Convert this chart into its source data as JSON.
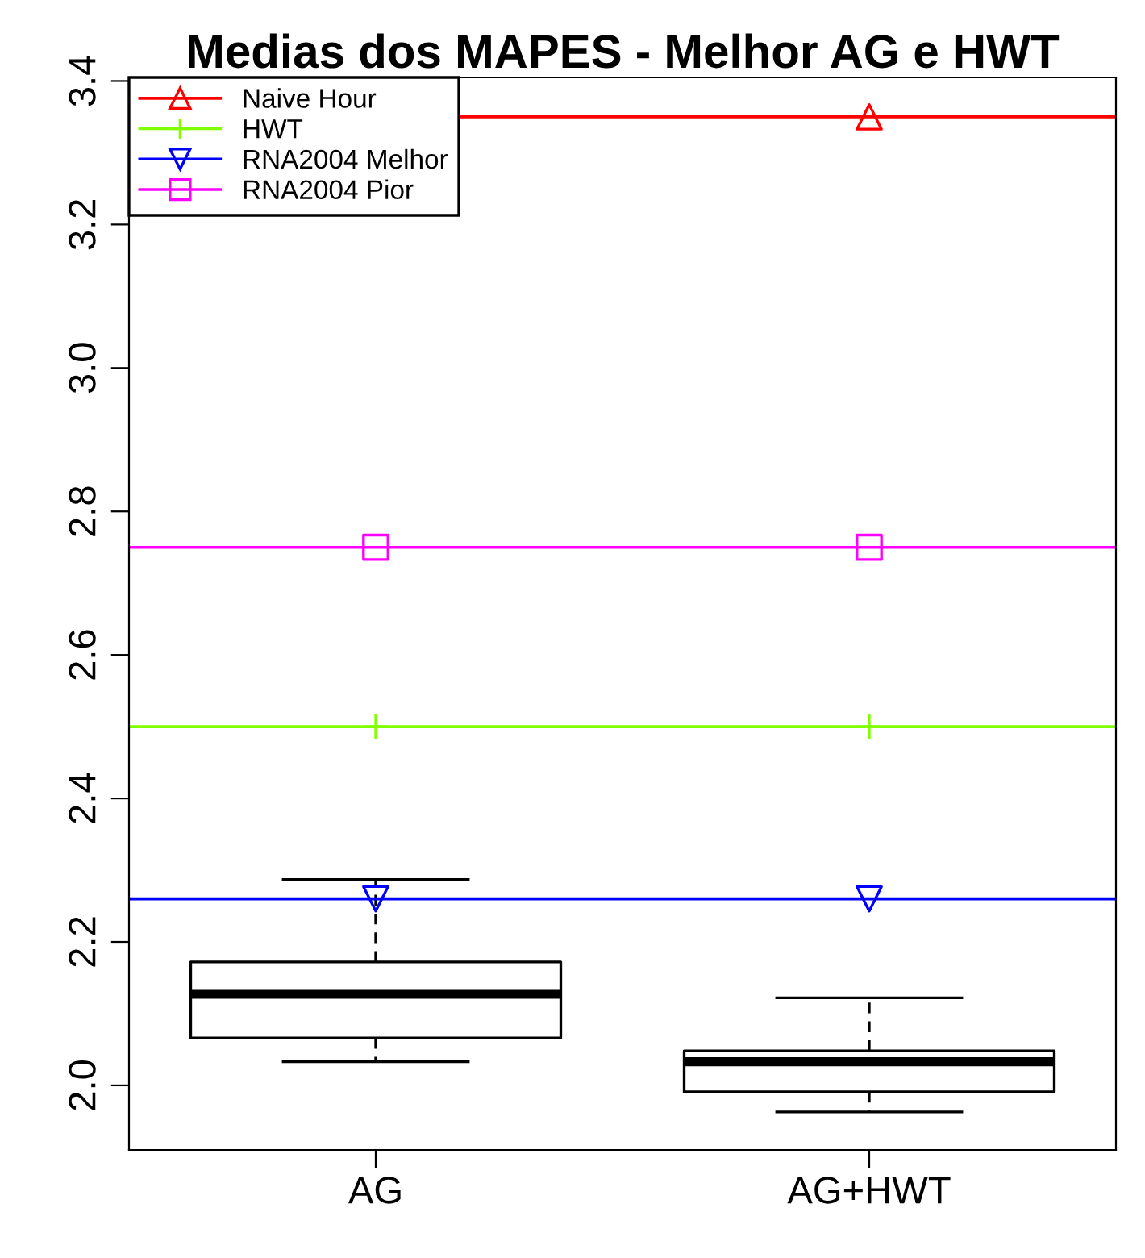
{
  "chart_data": {
    "type": "box",
    "title": "Medias dos MAPES - Melhor AG e HWT",
    "categories": [
      "AG",
      "AG+HWT"
    ],
    "boxes": [
      {
        "low": 2.033,
        "q1": 2.066,
        "median": 2.127,
        "q3": 2.172,
        "high": 2.287
      },
      {
        "low": 1.963,
        "q1": 1.991,
        "median": 2.033,
        "q3": 2.048,
        "high": 2.122
      }
    ],
    "series": [
      {
        "name": "Naive Hour",
        "type": "scatter",
        "color": "#ff0000",
        "marker": "triangle",
        "x": [
          "AG",
          "AG+HWT"
        ],
        "values": [
          null,
          3.35
        ]
      },
      {
        "name": "HWT",
        "type": "scatter",
        "color": "#80ff00",
        "marker": "cross",
        "x": [
          "AG",
          "AG+HWT"
        ],
        "values": [
          2.5,
          2.5
        ]
      },
      {
        "name": "RNA2004 Melhor",
        "type": "scatter",
        "color": "#0000ff",
        "x": [
          "AG",
          "AG+HWT"
        ],
        "values": [
          2.26,
          2.26
        ]
      },
      {
        "name": "RNA2004 Pior",
        "type": "scatter",
        "color": "#ff00ff",
        "marker": "square",
        "x": [
          "AG",
          "AG+HWT"
        ],
        "values": [
          2.75,
          2.75
        ]
      }
    ],
    "ref_lines": [
      {
        "axis": "y",
        "value": 3.35,
        "color": "#ff0000"
      },
      {
        "axis": "y",
        "value": 2.5,
        "color": "#80ff00"
      },
      {
        "axis": "y",
        "value": 2.26,
        "color": "#0000ff"
      },
      {
        "axis": "y",
        "value": 2.75,
        "color": "#ff00ff"
      }
    ],
    "ylim": [
      1.91,
      3.405
    ],
    "yticks": [
      {
        "value": 2,
        "label": "2.0"
      },
      2.2,
      2.4,
      2.6,
      2.8,
      {
        "value": 3,
        "label": "3.0"
      },
      3.2,
      3.4
    ],
    "grid": false,
    "legend": "top left"
  }
}
